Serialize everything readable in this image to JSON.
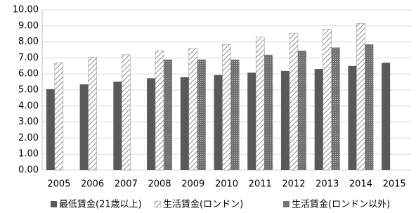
{
  "chart_data": {
    "type": "bar",
    "categories": [
      "2005",
      "2006",
      "2007",
      "2008",
      "2009",
      "2010",
      "2011",
      "2012",
      "2013",
      "2014",
      "2015"
    ],
    "series": [
      {
        "name": "最低賃金(21歳以上)",
        "color": "#595959",
        "pattern": "solid",
        "values": [
          5.05,
          5.35,
          5.52,
          5.73,
          5.8,
          5.93,
          6.08,
          6.19,
          6.31,
          6.5,
          6.7
        ]
      },
      {
        "name": "生活賃金(ロンドン)",
        "color": "#8c8c8c",
        "pattern": "diagonal",
        "values": [
          6.7,
          7.05,
          7.2,
          7.45,
          7.6,
          7.85,
          8.3,
          8.55,
          8.8,
          9.15,
          null
        ]
      },
      {
        "name": "生活賃金(ロンドン以外)",
        "color": "#6f6f6f",
        "pattern": "dots",
        "values": [
          null,
          null,
          null,
          6.9,
          6.9,
          6.9,
          7.2,
          7.45,
          7.65,
          7.85,
          null
        ]
      }
    ],
    "ylim": [
      0,
      10
    ],
    "yticks": [
      {
        "value": 0,
        "label": "0.00"
      },
      {
        "value": 1,
        "label": "1.00"
      },
      {
        "value": 2,
        "label": "2.00"
      },
      {
        "value": 3,
        "label": "3.00"
      },
      {
        "value": 4,
        "label": "4.00"
      },
      {
        "value": 5,
        "label": "5.00"
      },
      {
        "value": 6,
        "label": "6.00"
      },
      {
        "value": 7,
        "label": "7.00"
      },
      {
        "value": 8,
        "label": "8.00"
      },
      {
        "value": 9,
        "label": "9.00"
      },
      {
        "value": 10,
        "label": "10.00"
      }
    ],
    "grid": true,
    "legend": "bottom"
  }
}
